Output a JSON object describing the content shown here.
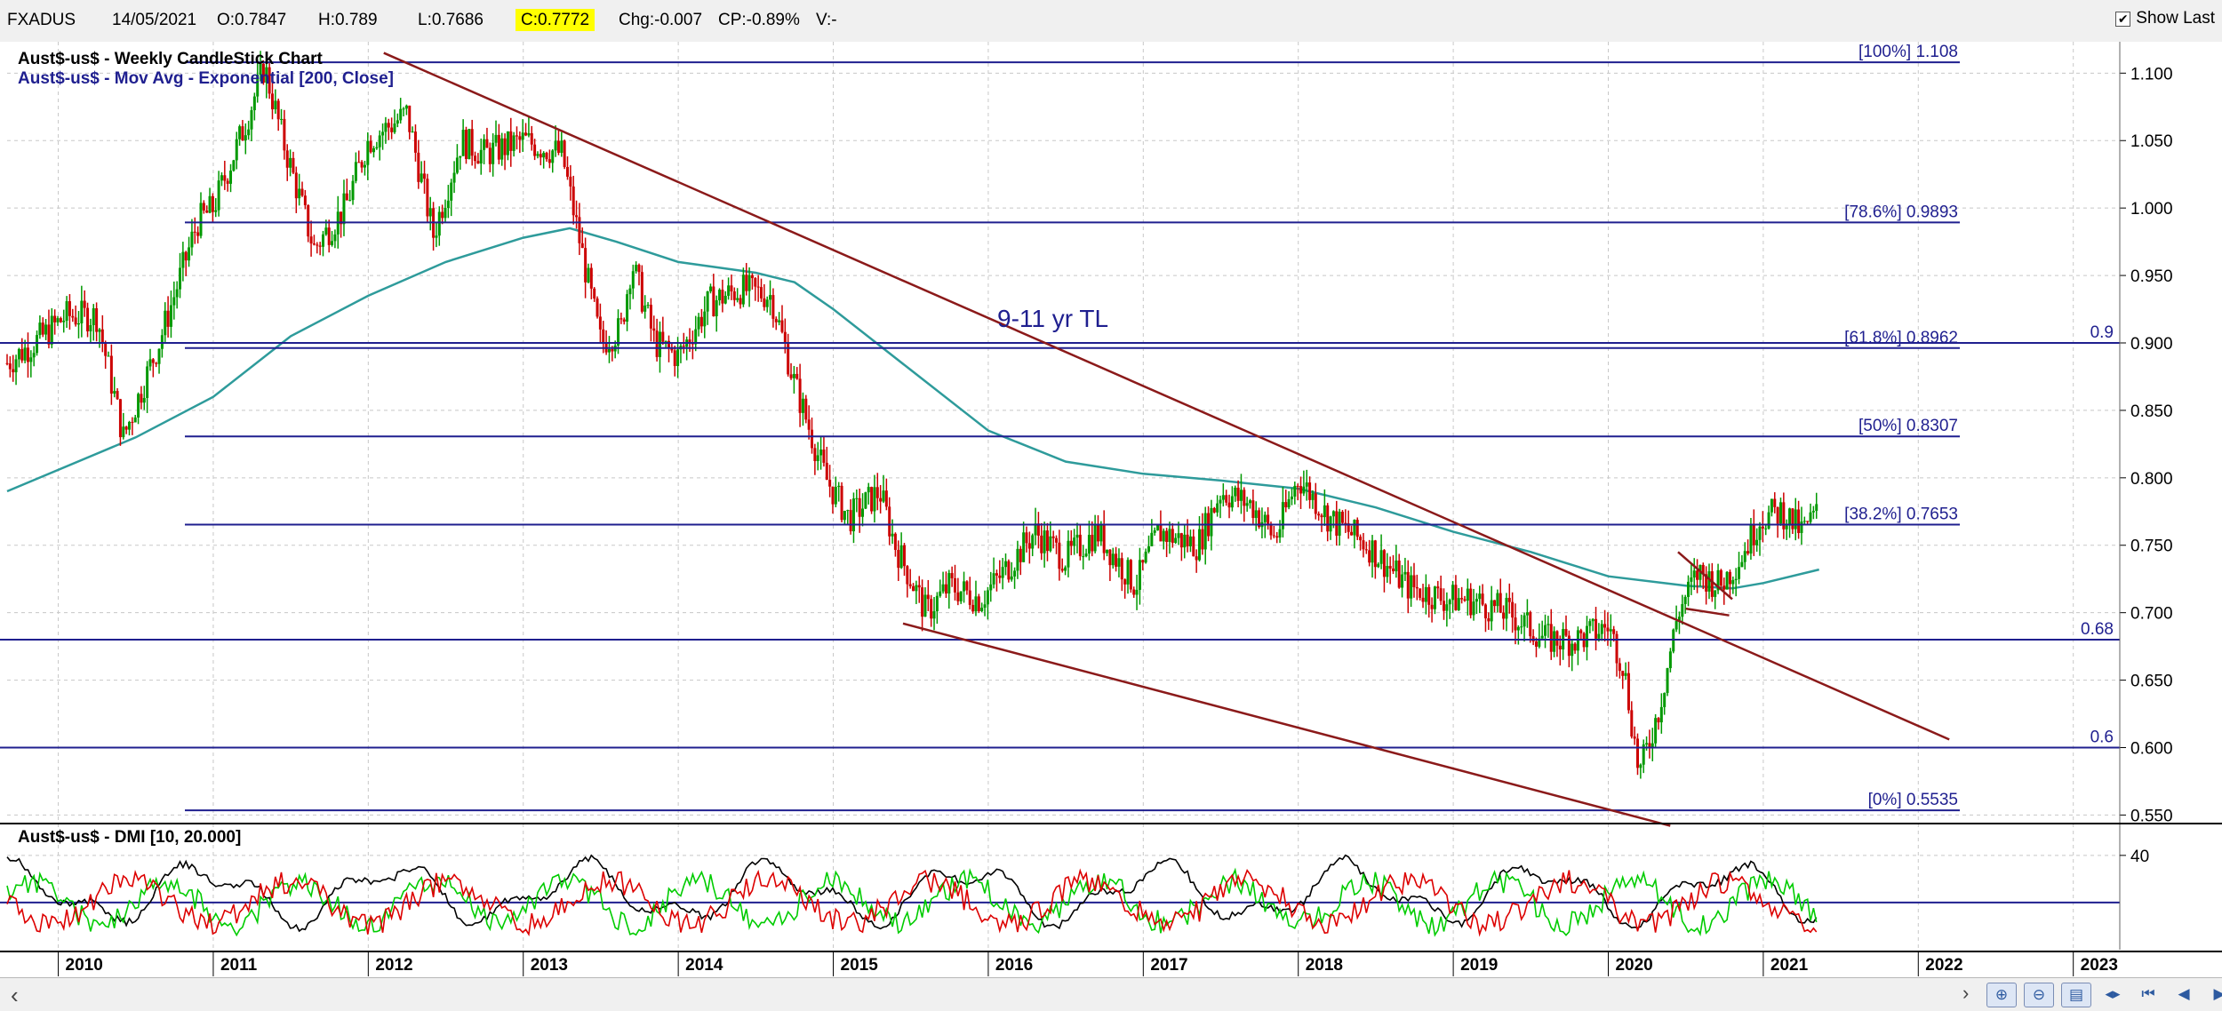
{
  "topbar": {
    "symbol": "FXADUS",
    "date": "14/05/2021",
    "open": "O:0.7847",
    "high": "H:0.789",
    "low": "L:0.7686",
    "close": "C:0.7772",
    "change": "Chg:-0.007",
    "change_pct": "CP:-0.89%",
    "volume": "V:-",
    "show_last_label": "Show Last",
    "show_last_checked": "✔"
  },
  "chart_data": [
    {
      "type": "candlestick",
      "title": "Aust$-us$ - Weekly CandleStick Chart",
      "subtitle": "Aust$-us$ - Mov Avg - Exponential [200, Close]",
      "x_ticks": [
        "2010",
        "2011",
        "2012",
        "2013",
        "2014",
        "2015",
        "2016",
        "2017",
        "2018",
        "2019",
        "2020",
        "2021",
        "2022",
        "2023"
      ],
      "y_ticks": [
        "1.100",
        "1.050",
        "1.000",
        "0.950",
        "0.900",
        "0.850",
        "0.800",
        "0.750",
        "0.700",
        "0.650",
        "0.600",
        "0.550"
      ],
      "ylim": [
        0.545,
        1.118
      ],
      "xlim": [
        2009.67,
        2023.3
      ],
      "annotation": "9-11 yr TL",
      "fib_levels": [
        {
          "label": "[100%] 1.108",
          "value": 1.108
        },
        {
          "label": "[78.6%] 0.9893",
          "value": 0.9893
        },
        {
          "label": "[61.8%] 0.8962",
          "value": 0.8962
        },
        {
          "label": "[50%] 0.8307",
          "value": 0.8307
        },
        {
          "label": "[38.2%] 0.7653",
          "value": 0.7653
        },
        {
          "label": "[0%] 0.5535",
          "value": 0.5535
        }
      ],
      "hlines": [
        {
          "label": "0.9",
          "value": 0.9
        },
        {
          "label": "0.68",
          "value": 0.68
        },
        {
          "label": "0.6",
          "value": 0.6
        }
      ],
      "trendlines": [
        {
          "from": [
            2012.1,
            1.115
          ],
          "to": [
            2022.2,
            0.606
          ]
        },
        {
          "from": [
            2015.45,
            0.692
          ],
          "to": [
            2020.4,
            0.542
          ]
        },
        {
          "from": [
            2020.45,
            0.745
          ],
          "to": [
            2020.8,
            0.71
          ]
        },
        {
          "from": [
            2020.5,
            0.703
          ],
          "to": [
            2020.78,
            0.698
          ]
        }
      ],
      "anchors": [
        [
          2009.67,
          0.885
        ],
        [
          2009.9,
          0.905
        ],
        [
          2010.05,
          0.92
        ],
        [
          2010.25,
          0.92
        ],
        [
          2010.42,
          0.83
        ],
        [
          2010.65,
          0.9
        ],
        [
          2010.9,
          0.99
        ],
        [
          2011.0,
          1.0
        ],
        [
          2011.2,
          1.06
        ],
        [
          2011.33,
          1.105
        ],
        [
          2011.45,
          1.05
        ],
        [
          2011.65,
          0.97
        ],
        [
          2011.85,
          1.0
        ],
        [
          2012.0,
          1.05
        ],
        [
          2012.25,
          1.07
        ],
        [
          2012.42,
          0.98
        ],
        [
          2012.6,
          1.05
        ],
        [
          2012.75,
          1.04
        ],
        [
          2013.0,
          1.05
        ],
        [
          2013.25,
          1.04
        ],
        [
          2013.4,
          0.955
        ],
        [
          2013.5,
          0.9
        ],
        [
          2013.63,
          0.91
        ],
        [
          2013.7,
          0.96
        ],
        [
          2013.85,
          0.9
        ],
        [
          2014.0,
          0.89
        ],
        [
          2014.2,
          0.93
        ],
        [
          2014.4,
          0.94
        ],
        [
          2014.6,
          0.935
        ],
        [
          2014.75,
          0.87
        ],
        [
          2014.95,
          0.8
        ],
        [
          2015.1,
          0.77
        ],
        [
          2015.3,
          0.79
        ],
        [
          2015.4,
          0.75
        ],
        [
          2015.6,
          0.7
        ],
        [
          2015.75,
          0.72
        ],
        [
          2015.95,
          0.71
        ],
        [
          2016.1,
          0.73
        ],
        [
          2016.3,
          0.76
        ],
        [
          2016.5,
          0.74
        ],
        [
          2016.7,
          0.76
        ],
        [
          2016.95,
          0.72
        ],
        [
          2017.1,
          0.76
        ],
        [
          2017.35,
          0.75
        ],
        [
          2017.5,
          0.79
        ],
        [
          2017.7,
          0.78
        ],
        [
          2017.85,
          0.755
        ],
        [
          2018.0,
          0.8
        ],
        [
          2018.2,
          0.77
        ],
        [
          2018.45,
          0.75
        ],
        [
          2018.7,
          0.72
        ],
        [
          2018.95,
          0.71
        ],
        [
          2019.1,
          0.71
        ],
        [
          2019.35,
          0.7
        ],
        [
          2019.6,
          0.68
        ],
        [
          2019.8,
          0.68
        ],
        [
          2020.0,
          0.69
        ],
        [
          2020.1,
          0.66
        ],
        [
          2020.2,
          0.58
        ],
        [
          2020.33,
          0.63
        ],
        [
          2020.45,
          0.7
        ],
        [
          2020.58,
          0.73
        ],
        [
          2020.72,
          0.72
        ],
        [
          2020.85,
          0.74
        ],
        [
          2020.98,
          0.77
        ],
        [
          2021.12,
          0.775
        ],
        [
          2021.25,
          0.76
        ],
        [
          2021.36,
          0.775
        ]
      ],
      "ema200": [
        [
          2009.67,
          0.79
        ],
        [
          2010.5,
          0.83
        ],
        [
          2011.0,
          0.86
        ],
        [
          2011.5,
          0.905
        ],
        [
          2012.0,
          0.935
        ],
        [
          2012.5,
          0.96
        ],
        [
          2013.0,
          0.978
        ],
        [
          2013.3,
          0.985
        ],
        [
          2013.6,
          0.975
        ],
        [
          2014.0,
          0.96
        ],
        [
          2014.5,
          0.952
        ],
        [
          2014.75,
          0.945
        ],
        [
          2015.0,
          0.925
        ],
        [
          2015.5,
          0.88
        ],
        [
          2016.0,
          0.835
        ],
        [
          2016.5,
          0.812
        ],
        [
          2017.0,
          0.803
        ],
        [
          2017.5,
          0.798
        ],
        [
          2018.0,
          0.792
        ],
        [
          2018.5,
          0.778
        ],
        [
          2019.0,
          0.76
        ],
        [
          2019.5,
          0.745
        ],
        [
          2020.0,
          0.727
        ],
        [
          2020.5,
          0.72
        ],
        [
          2020.8,
          0.718
        ],
        [
          2021.0,
          0.722
        ],
        [
          2021.36,
          0.732
        ]
      ]
    },
    {
      "type": "line",
      "title": "Aust$-us$ - DMI [10, 20.000]",
      "y_ticks": [
        "40"
      ],
      "reference_line": 20,
      "series": [
        {
          "key": "adx",
          "color": "#000000"
        },
        {
          "key": "plus_di",
          "color": "#00cc00"
        },
        {
          "key": "minus_di",
          "color": "#dd0000"
        }
      ]
    }
  ],
  "colors": {
    "up": "#009900",
    "down": "#cc0000",
    "ema": "#2e9b9b",
    "level_line": "#1f1f8f",
    "trendline": "#8b1a1a",
    "grid": "#c8c8c8"
  },
  "bottombar": {
    "scroll_left": "‹",
    "scroll_right": "›",
    "nav_icons": [
      "zoom-in-icon",
      "zoom-out-icon",
      "chart-settings-icon",
      "zoom-fit-icon",
      "first-bar-icon",
      "scroll-back-icon",
      "scroll-forward-icon"
    ]
  }
}
